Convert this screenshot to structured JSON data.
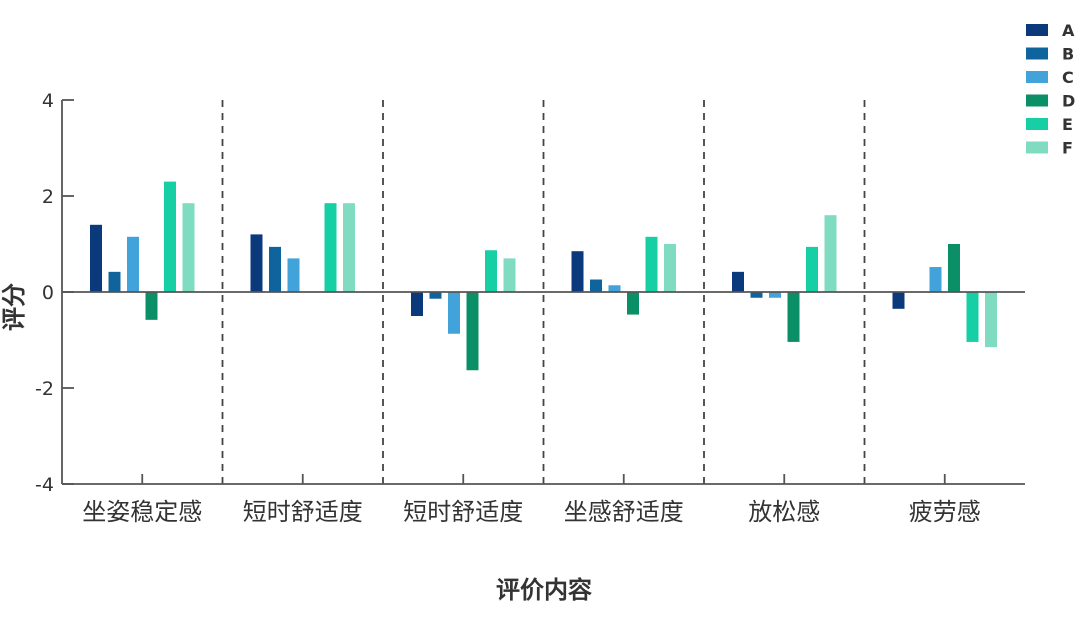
{
  "chart_data": {
    "type": "bar",
    "xlabel": "评价内容",
    "ylabel": "评分",
    "ylim": [
      -4,
      4
    ],
    "yticks": [
      -4,
      -2,
      0,
      2,
      4
    ],
    "grid": false,
    "legend_position": "top-right",
    "separators": "dashed vertical lines between categories",
    "categories": [
      "坐姿稳定感",
      "短时舒适度",
      "短时舒适度",
      "坐感舒适度",
      "放松感",
      "疲劳感"
    ],
    "series": [
      {
        "name": "A",
        "color": "#0b3a7c",
        "values": [
          1.4,
          1.2,
          -0.5,
          0.85,
          0.42,
          -0.35
        ]
      },
      {
        "name": "B",
        "color": "#10649e",
        "values": [
          0.42,
          0.94,
          -0.14,
          0.26,
          -0.12,
          0
        ]
      },
      {
        "name": "C",
        "color": "#42a3da",
        "values": [
          1.15,
          0.7,
          -0.87,
          0.14,
          -0.12,
          0.52
        ]
      },
      {
        "name": "D",
        "color": "#0b8f67",
        "values": [
          -0.58,
          0,
          -1.63,
          -0.47,
          -1.04,
          1.0
        ]
      },
      {
        "name": "E",
        "color": "#16cfa5",
        "values": [
          2.3,
          1.85,
          0.87,
          1.15,
          0.94,
          -1.04
        ]
      },
      {
        "name": "F",
        "color": "#7fdcc1",
        "values": [
          1.85,
          1.85,
          0.7,
          1.0,
          1.6,
          -1.15
        ]
      }
    ]
  }
}
